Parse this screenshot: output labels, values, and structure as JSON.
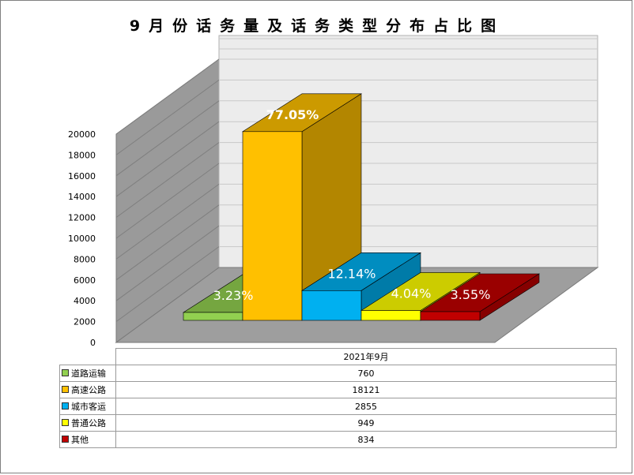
{
  "chart_data": {
    "type": "bar",
    "title": "9月份话务量及话务类型分布占比图",
    "categories": [
      "2021年9月"
    ],
    "series": [
      {
        "name": "道路运输",
        "value": 760,
        "percent_label": "3.23%",
        "color": "#92D050"
      },
      {
        "name": "高速公路",
        "value": 18121,
        "percent_label": "77.05%",
        "color": "#FFC000"
      },
      {
        "name": "城市客运",
        "value": 2855,
        "percent_label": "12.14%",
        "color": "#00B0F0"
      },
      {
        "name": "普通公路",
        "value": 949,
        "percent_label": "4.04%",
        "color": "#FFFF00"
      },
      {
        "name": "其他",
        "value": 834,
        "percent_label": "3.55%",
        "color": "#C00000"
      }
    ],
    "yaxis": {
      "min": 0,
      "max": 20000,
      "step": 2000,
      "ticks": [
        "0",
        "2000",
        "4000",
        "6000",
        "8000",
        "10000",
        "12000",
        "14000",
        "16000",
        "18000",
        "20000"
      ]
    },
    "grid": true,
    "legend": "data-table-below"
  }
}
